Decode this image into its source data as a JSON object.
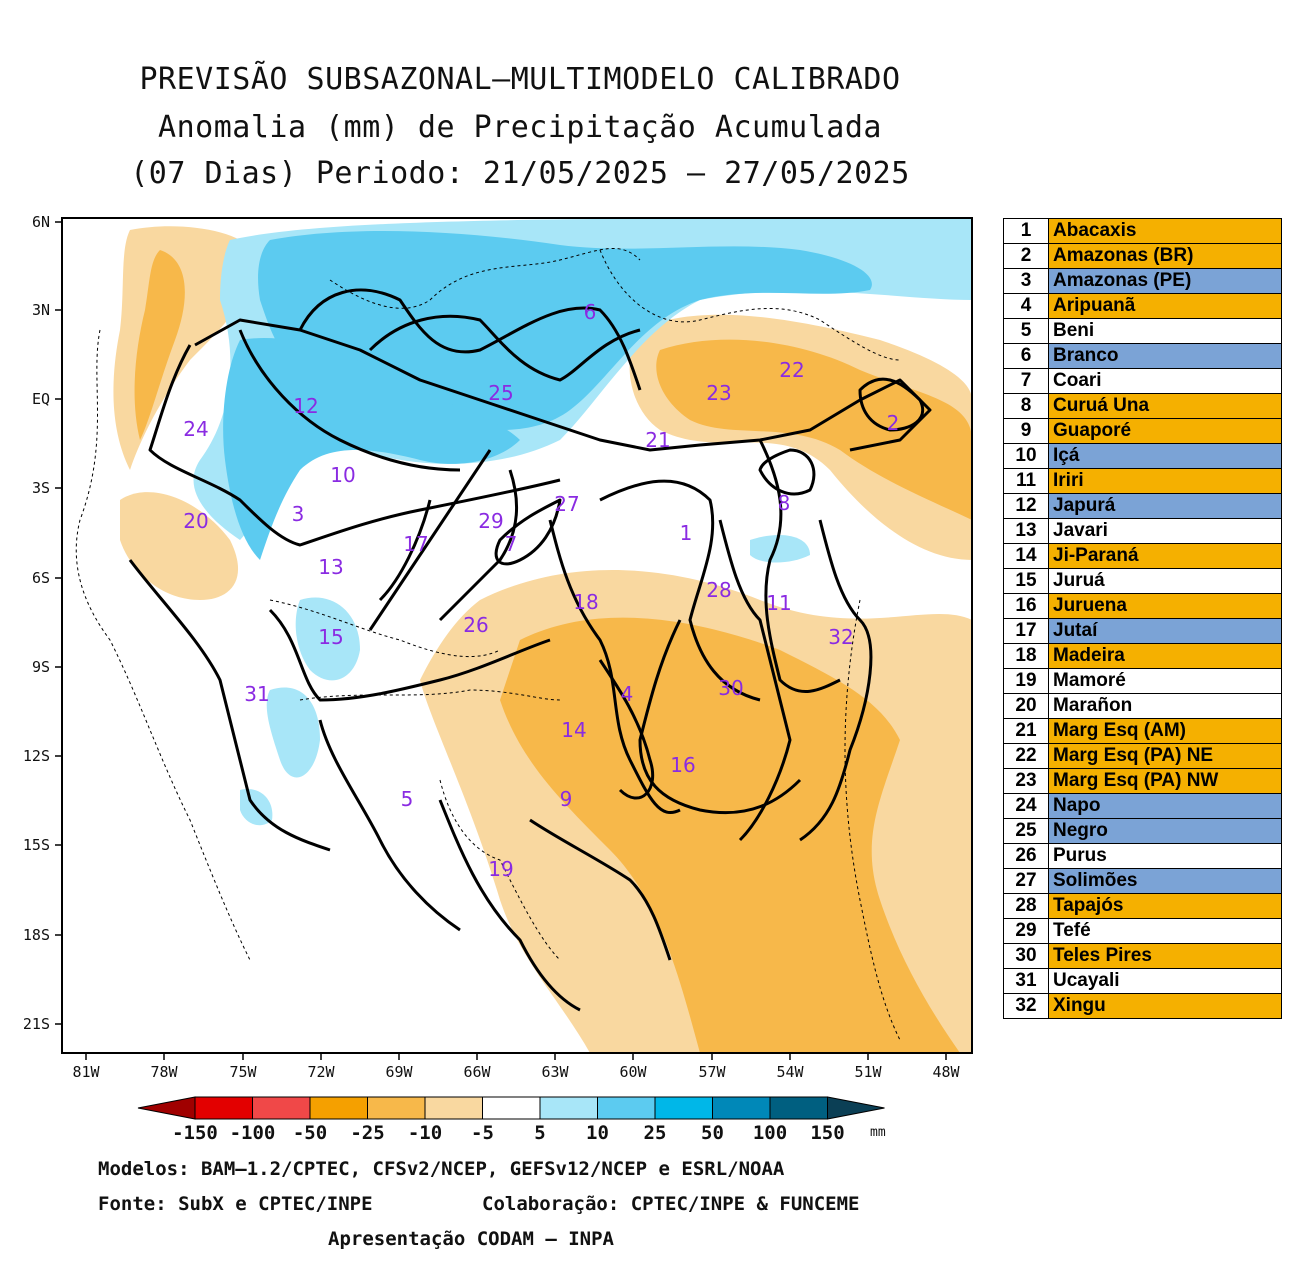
{
  "title": {
    "line1": "PREVISÃO SUBSAZONAL–MULTIMODELO CALIBRADO",
    "line2": "Anomalia (mm) de Precipitação Acumulada",
    "line3": "(07 Dias) Periodo: 21/05/2025 – 27/05/2025"
  },
  "axes": {
    "lat_labels": [
      "6N",
      "3N",
      "EQ",
      "3S",
      "6S",
      "9S",
      "12S",
      "15S",
      "18S",
      "21S"
    ],
    "lon_labels": [
      "81W",
      "78W",
      "75W",
      "72W",
      "69W",
      "66W",
      "63W",
      "60W",
      "57W",
      "54W",
      "51W",
      "48W"
    ]
  },
  "colorbar": {
    "labels": [
      "-150",
      "-100",
      "-50",
      "-25",
      "-10",
      "-5",
      "5",
      "10",
      "25",
      "50",
      "100",
      "150"
    ],
    "unit": "mm",
    "colors": [
      "#a00000",
      "#e30000",
      "#f04848",
      "#f5a000",
      "#f7b84a",
      "#f9d8a0",
      "#ffffff",
      "#a8e6f8",
      "#5ccbf0",
      "#00b7e8",
      "#0088b8",
      "#005f80",
      "#0b3f55"
    ]
  },
  "basin_labels": [
    {
      "id": "1"
    },
    {
      "id": "2"
    },
    {
      "id": "3"
    },
    {
      "id": "4"
    },
    {
      "id": "5"
    },
    {
      "id": "6"
    },
    {
      "id": "7"
    },
    {
      "id": "8"
    },
    {
      "id": "9"
    },
    {
      "id": "10"
    },
    {
      "id": "11"
    },
    {
      "id": "12"
    },
    {
      "id": "13"
    },
    {
      "id": "14"
    },
    {
      "id": "15"
    },
    {
      "id": "16"
    },
    {
      "id": "17"
    },
    {
      "id": "18"
    },
    {
      "id": "19"
    },
    {
      "id": "20"
    },
    {
      "id": "21"
    },
    {
      "id": "22"
    },
    {
      "id": "23"
    },
    {
      "id": "24"
    },
    {
      "id": "25"
    },
    {
      "id": "26"
    },
    {
      "id": "27"
    },
    {
      "id": "28"
    },
    {
      "id": "29"
    },
    {
      "id": "30"
    },
    {
      "id": "31"
    },
    {
      "id": "32"
    }
  ],
  "legend": [
    {
      "num": "1",
      "name": "Abacaxis",
      "class": "dry"
    },
    {
      "num": "2",
      "name": "Amazonas (BR)",
      "class": "dry"
    },
    {
      "num": "3",
      "name": "Amazonas (PE)",
      "class": "wet"
    },
    {
      "num": "4",
      "name": "Aripuanã",
      "class": "dry"
    },
    {
      "num": "5",
      "name": "Beni",
      "class": "neutral"
    },
    {
      "num": "6",
      "name": "Branco",
      "class": "wet"
    },
    {
      "num": "7",
      "name": "Coari",
      "class": "neutral"
    },
    {
      "num": "8",
      "name": "Curuá Una",
      "class": "dry"
    },
    {
      "num": "9",
      "name": "Guaporé",
      "class": "dry"
    },
    {
      "num": "10",
      "name": "Içá",
      "class": "wet"
    },
    {
      "num": "11",
      "name": "Iriri",
      "class": "dry"
    },
    {
      "num": "12",
      "name": "Japurá",
      "class": "wet"
    },
    {
      "num": "13",
      "name": "Javari",
      "class": "neutral"
    },
    {
      "num": "14",
      "name": "Ji-Paraná",
      "class": "dry"
    },
    {
      "num": "15",
      "name": "Juruá",
      "class": "neutral"
    },
    {
      "num": "16",
      "name": "Juruena",
      "class": "dry"
    },
    {
      "num": "17",
      "name": "Jutaí",
      "class": "wet"
    },
    {
      "num": "18",
      "name": "Madeira",
      "class": "dry"
    },
    {
      "num": "19",
      "name": "Mamoré",
      "class": "neutral"
    },
    {
      "num": "20",
      "name": "Marañon",
      "class": "neutral"
    },
    {
      "num": "21",
      "name": "Marg Esq (AM)",
      "class": "dry"
    },
    {
      "num": "22",
      "name": "Marg Esq (PA) NE",
      "class": "dry"
    },
    {
      "num": "23",
      "name": "Marg Esq (PA) NW",
      "class": "dry"
    },
    {
      "num": "24",
      "name": "Napo",
      "class": "wet"
    },
    {
      "num": "25",
      "name": "Negro",
      "class": "wet"
    },
    {
      "num": "26",
      "name": "Purus",
      "class": "neutral"
    },
    {
      "num": "27",
      "name": "Solimões",
      "class": "wet"
    },
    {
      "num": "28",
      "name": "Tapajós",
      "class": "dry"
    },
    {
      "num": "29",
      "name": "Tefé",
      "class": "neutral"
    },
    {
      "num": "30",
      "name": "Teles Pires",
      "class": "dry"
    },
    {
      "num": "31",
      "name": "Ucayali",
      "class": "neutral"
    },
    {
      "num": "32",
      "name": "Xingu",
      "class": "dry"
    }
  ],
  "legend_colors": {
    "dry": "#f5b000",
    "wet": "#7ba3d6",
    "neutral": "#ffffff"
  },
  "footer": {
    "models": "Modelos: BAM–1.2/CPTEC, CFSv2/NCEP, GEFSv12/NCEP e ESRL/NOAA",
    "source": "Fonte: SubX e CPTEC/INPE",
    "collab": "Colaboração: CPTEC/INPE & FUNCEME",
    "presentation": "Apresentação CODAM – INPA"
  }
}
